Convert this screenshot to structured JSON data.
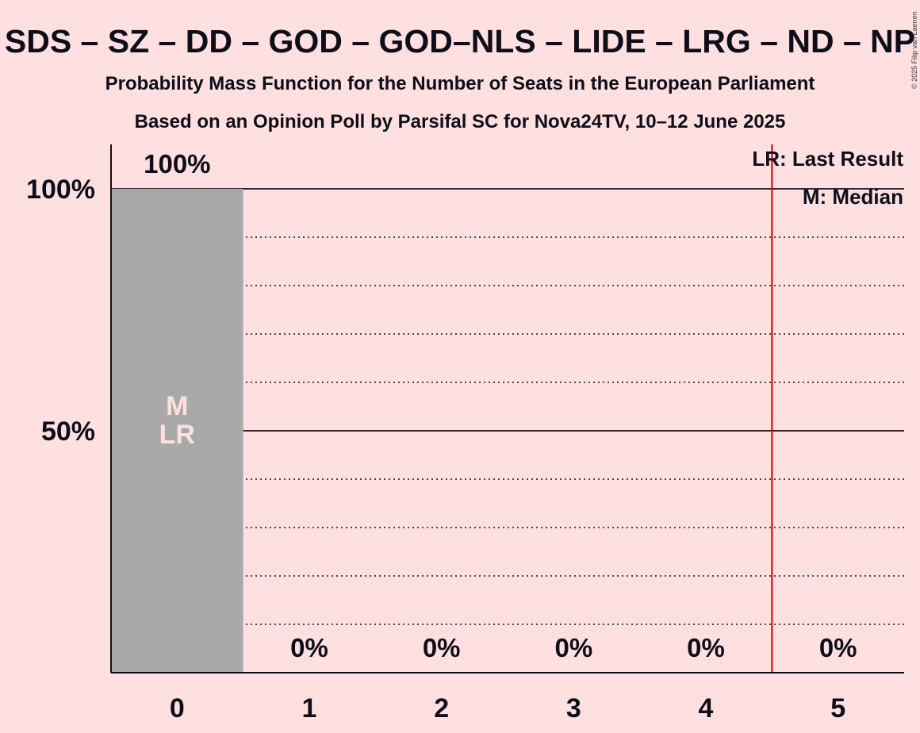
{
  "header": {
    "title": "SDS – SZ – DD – GOD – GOD–NLS – LIDE – LRG – ND – NP",
    "subtitle1": "Probability Mass Function for the Number of Seats in the European Parliament",
    "subtitle2": "Based on an Opinion Poll by Parsifal SC for Nova24TV, 10–12 June 2025",
    "copyright": "© 2025 Filip van Laenen"
  },
  "legend": {
    "last_result": "LR: Last Result",
    "median": "M: Median"
  },
  "chart_data": {
    "type": "bar",
    "categories": [
      "0",
      "1",
      "2",
      "3",
      "4",
      "5"
    ],
    "values": [
      100,
      0,
      0,
      0,
      0,
      0
    ],
    "value_labels": [
      "100%",
      "0%",
      "0%",
      "0%",
      "0%",
      "0%"
    ],
    "bar_color": "#A9A9A9",
    "y_unit": "%",
    "ylim": [
      0,
      100
    ],
    "yticks": [
      {
        "value": 50,
        "label": "50%"
      },
      {
        "value": 100,
        "label": "100%"
      }
    ],
    "minor_gridlines": [
      10,
      20,
      30,
      40,
      60,
      70,
      80,
      90
    ],
    "median": {
      "category": "0",
      "label": "M"
    },
    "last_result": {
      "category": "0",
      "label": "LR"
    },
    "majority_line": {
      "x": 4.5,
      "color": "#CC0000"
    },
    "grid": true,
    "legend_position": "top-right"
  }
}
